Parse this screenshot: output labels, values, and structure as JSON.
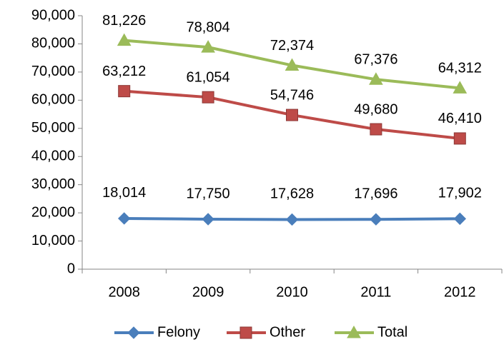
{
  "chart_data": {
    "type": "line",
    "categories": [
      "2008",
      "2009",
      "2010",
      "2011",
      "2012"
    ],
    "series": [
      {
        "name": "Felony",
        "color": "#4a7ebb",
        "marker": "diamond",
        "values": [
          18014,
          17750,
          17628,
          17696,
          17902
        ],
        "value_labels": [
          "18,014",
          "17,750",
          "17,628",
          "17,696",
          "17,902"
        ]
      },
      {
        "name": "Other",
        "color": "#be4b48",
        "marker": "square",
        "values": [
          63212,
          61054,
          54746,
          49680,
          46410
        ],
        "value_labels": [
          "63,212",
          "61,054",
          "54,746",
          "49,680",
          "46,410"
        ]
      },
      {
        "name": "Total",
        "color": "#9bbb59",
        "marker": "triangle",
        "values": [
          81226,
          78804,
          72374,
          67376,
          64312
        ],
        "value_labels": [
          "81,226",
          "78,804",
          "72,374",
          "67,376",
          "64,312"
        ]
      }
    ],
    "ylim": [
      0,
      90000
    ],
    "yticks": [
      0,
      {
        "value": 10000,
        "label": "10,000"
      },
      {
        "value": 20000,
        "label": "20,000"
      },
      {
        "value": 30000,
        "label": "30,000"
      },
      {
        "value": 40000,
        "label": "40,000"
      },
      {
        "value": 50000,
        "label": "50,000"
      },
      {
        "value": 60000,
        "label": "60,000"
      },
      {
        "value": 70000,
        "label": "70,000"
      },
      {
        "value": 80000,
        "label": "80,000"
      },
      {
        "value": 90000,
        "label": "90,000"
      }
    ],
    "legend": "bottom"
  }
}
